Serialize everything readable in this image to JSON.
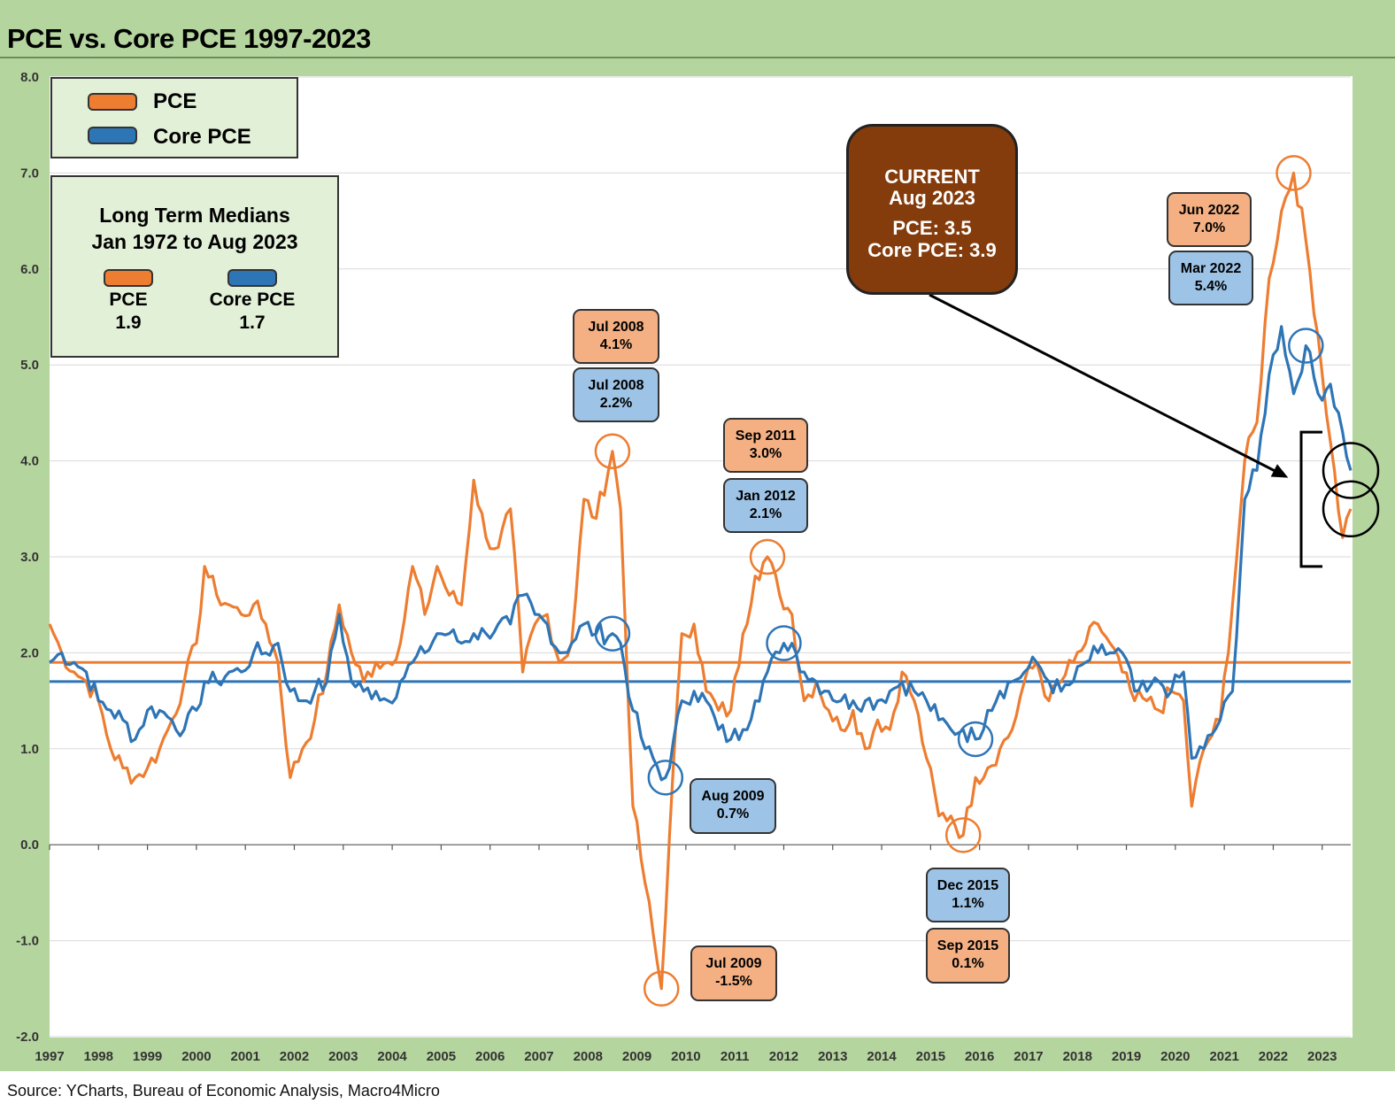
{
  "title": "PCE vs. Core PCE 1997-2023",
  "source": "Source:  YCharts,  Bureau of Economic Analysis, Macro4Micro",
  "colors": {
    "pce": "#ed7d31",
    "core": "#2e75b6",
    "frame": "#b5d59e",
    "current_box": "#843c0c",
    "callout_orange": "#f4b083",
    "callout_blue": "#9dc3e6"
  },
  "legend": {
    "pce_label": "PCE",
    "core_label": "Core PCE"
  },
  "medians": {
    "title_line1": "Long Term Medians",
    "title_line2": "Jan 1972 to Aug 2023",
    "pce_label": "PCE",
    "pce_value": "1.9",
    "core_label": "Core PCE",
    "core_value": "1.7"
  },
  "current": {
    "line1": "CURRENT",
    "line2": "Aug 2023",
    "line3": "PCE:  3.5",
    "line4": "Core PCE: 3.9"
  },
  "callouts": [
    {
      "key": "jun2022",
      "line1": "Jun 2022",
      "line2": "7.0%"
    },
    {
      "key": "mar2022",
      "line1": "Mar 2022",
      "line2": "5.4%"
    },
    {
      "key": "jul2008_pce",
      "line1": "Jul 2008",
      "line2": "4.1%"
    },
    {
      "key": "jul2008_core",
      "line1": "Jul 2008",
      "line2": "2.2%"
    },
    {
      "key": "sep2011",
      "line1": "Sep 2011",
      "line2": "3.0%"
    },
    {
      "key": "jan2012",
      "line1": "Jan 2012",
      "line2": "2.1%"
    },
    {
      "key": "aug2009",
      "line1": "Aug 2009",
      "line2": "0.7%"
    },
    {
      "key": "jul2009",
      "line1": "Jul 2009",
      "line2": "-1.5%"
    },
    {
      "key": "dec2015",
      "line1": "Dec 2015",
      "line2": "1.1%"
    },
    {
      "key": "sep2015",
      "line1": "Sep 2015",
      "line2": "0.1%"
    }
  ],
  "chart_data": {
    "type": "line",
    "title": "PCE vs. Core PCE 1997-2023",
    "ylim": [
      -2.0,
      8.0
    ],
    "y_ticks": [
      "8.0",
      "7.0",
      "6.0",
      "5.0",
      "4.0",
      "3.0",
      "2.0",
      "1.0",
      "0.0",
      "-1.0",
      "-2.0"
    ],
    "y_tick_values": [
      8,
      7,
      6,
      5,
      4,
      3,
      2,
      1,
      0,
      -1,
      -2
    ],
    "x_ticks": [
      "1997",
      "1998",
      "1999",
      "2000",
      "2001",
      "2002",
      "2003",
      "2004",
      "2005",
      "2006",
      "2007",
      "2008",
      "2009",
      "2010",
      "2011",
      "2012",
      "2013",
      "2014",
      "2015",
      "2016",
      "2017",
      "2018",
      "2019",
      "2020",
      "2021",
      "2022",
      "2023"
    ],
    "x_range": [
      "1997-01",
      "2023-08"
    ],
    "grid": true,
    "legend_position": "top-left",
    "medians": [
      {
        "name": "PCE",
        "value": 1.9
      },
      {
        "name": "Core PCE",
        "value": 1.7
      }
    ],
    "series": [
      {
        "name": "PCE",
        "points": [
          [
            "1997-01",
            2.3
          ],
          [
            "1997-04",
            2.0
          ],
          [
            "1997-07",
            1.8
          ],
          [
            "1997-10",
            1.7
          ],
          [
            "1998-01",
            1.5
          ],
          [
            "1998-04",
            1.0
          ],
          [
            "1998-07",
            0.8
          ],
          [
            "1998-10",
            0.7
          ],
          [
            "1999-01",
            0.8
          ],
          [
            "1999-04",
            1.0
          ],
          [
            "1999-07",
            1.3
          ],
          [
            "1999-10",
            1.7
          ],
          [
            "2000-01",
            2.1
          ],
          [
            "2000-03",
            2.9
          ],
          [
            "2000-06",
            2.6
          ],
          [
            "2000-09",
            2.5
          ],
          [
            "2000-12",
            2.4
          ],
          [
            "2001-03",
            2.5
          ],
          [
            "2001-06",
            2.3
          ],
          [
            "2001-09",
            1.9
          ],
          [
            "2001-12",
            0.7
          ],
          [
            "2002-03",
            1.0
          ],
          [
            "2002-06",
            1.3
          ],
          [
            "2002-09",
            1.8
          ],
          [
            "2002-12",
            2.5
          ],
          [
            "2003-03",
            2.0
          ],
          [
            "2003-06",
            1.7
          ],
          [
            "2003-09",
            1.9
          ],
          [
            "2003-12",
            1.9
          ],
          [
            "2004-03",
            2.1
          ],
          [
            "2004-06",
            2.9
          ],
          [
            "2004-09",
            2.4
          ],
          [
            "2004-12",
            2.9
          ],
          [
            "2005-03",
            2.6
          ],
          [
            "2005-06",
            2.5
          ],
          [
            "2005-09",
            3.8
          ],
          [
            "2005-12",
            3.2
          ],
          [
            "2006-03",
            3.1
          ],
          [
            "2006-06",
            3.5
          ],
          [
            "2006-09",
            1.8
          ],
          [
            "2006-12",
            2.3
          ],
          [
            "2007-03",
            2.4
          ],
          [
            "2007-06",
            1.9
          ],
          [
            "2007-09",
            2.1
          ],
          [
            "2007-12",
            3.6
          ],
          [
            "2008-03",
            3.4
          ],
          [
            "2008-07",
            4.1
          ],
          [
            "2008-09",
            3.5
          ],
          [
            "2008-12",
            0.4
          ],
          [
            "2009-03",
            -0.4
          ],
          [
            "2009-07",
            -1.5
          ],
          [
            "2009-09",
            0.1
          ],
          [
            "2009-12",
            2.2
          ],
          [
            "2010-03",
            2.3
          ],
          [
            "2010-06",
            1.6
          ],
          [
            "2010-09",
            1.4
          ],
          [
            "2010-12",
            1.4
          ],
          [
            "2011-03",
            2.2
          ],
          [
            "2011-06",
            2.8
          ],
          [
            "2011-09",
            3.0
          ],
          [
            "2011-12",
            2.6
          ],
          [
            "2012-03",
            2.4
          ],
          [
            "2012-06",
            1.5
          ],
          [
            "2012-09",
            1.7
          ],
          [
            "2012-12",
            1.4
          ],
          [
            "2013-03",
            1.2
          ],
          [
            "2013-06",
            1.4
          ],
          [
            "2013-09",
            1.0
          ],
          [
            "2013-12",
            1.3
          ],
          [
            "2014-03",
            1.2
          ],
          [
            "2014-06",
            1.8
          ],
          [
            "2014-09",
            1.5
          ],
          [
            "2014-12",
            0.9
          ],
          [
            "2015-03",
            0.3
          ],
          [
            "2015-06",
            0.3
          ],
          [
            "2015-09",
            0.1
          ],
          [
            "2015-12",
            0.7
          ],
          [
            "2016-03",
            0.8
          ],
          [
            "2016-06",
            1.0
          ],
          [
            "2016-09",
            1.2
          ],
          [
            "2016-12",
            1.7
          ],
          [
            "2017-03",
            1.9
          ],
          [
            "2017-06",
            1.5
          ],
          [
            "2017-09",
            1.7
          ],
          [
            "2017-12",
            1.9
          ],
          [
            "2018-03",
            2.1
          ],
          [
            "2018-06",
            2.3
          ],
          [
            "2018-09",
            2.1
          ],
          [
            "2018-12",
            1.8
          ],
          [
            "2019-03",
            1.5
          ],
          [
            "2019-06",
            1.5
          ],
          [
            "2019-09",
            1.4
          ],
          [
            "2019-12",
            1.6
          ],
          [
            "2020-03",
            1.5
          ],
          [
            "2020-05",
            0.4
          ],
          [
            "2020-08",
            1.0
          ],
          [
            "2020-12",
            1.3
          ],
          [
            "2021-03",
            2.5
          ],
          [
            "2021-06",
            4.0
          ],
          [
            "2021-09",
            4.4
          ],
          [
            "2021-12",
            5.9
          ],
          [
            "2022-03",
            6.6
          ],
          [
            "2022-06",
            7.0
          ],
          [
            "2022-09",
            6.3
          ],
          [
            "2022-12",
            5.3
          ],
          [
            "2023-03",
            4.2
          ],
          [
            "2023-06",
            3.2
          ],
          [
            "2023-08",
            3.5
          ]
        ]
      },
      {
        "name": "Core PCE",
        "points": [
          [
            "1997-01",
            1.9
          ],
          [
            "1997-04",
            2.0
          ],
          [
            "1997-07",
            1.9
          ],
          [
            "1997-10",
            1.8
          ],
          [
            "1998-01",
            1.5
          ],
          [
            "1998-04",
            1.4
          ],
          [
            "1998-07",
            1.3
          ],
          [
            "1998-10",
            1.1
          ],
          [
            "1999-01",
            1.4
          ],
          [
            "1999-04",
            1.4
          ],
          [
            "1999-07",
            1.3
          ],
          [
            "1999-10",
            1.2
          ],
          [
            "2000-01",
            1.4
          ],
          [
            "2000-03",
            1.7
          ],
          [
            "2000-06",
            1.7
          ],
          [
            "2000-09",
            1.8
          ],
          [
            "2000-12",
            1.8
          ],
          [
            "2001-03",
            2.0
          ],
          [
            "2001-06",
            2.0
          ],
          [
            "2001-09",
            2.1
          ],
          [
            "2001-12",
            1.6
          ],
          [
            "2002-03",
            1.5
          ],
          [
            "2002-06",
            1.6
          ],
          [
            "2002-09",
            1.7
          ],
          [
            "2002-12",
            2.4
          ],
          [
            "2003-03",
            1.7
          ],
          [
            "2003-06",
            1.6
          ],
          [
            "2003-09",
            1.6
          ],
          [
            "2003-12",
            1.5
          ],
          [
            "2004-03",
            1.7
          ],
          [
            "2004-06",
            1.9
          ],
          [
            "2004-09",
            2.0
          ],
          [
            "2004-12",
            2.2
          ],
          [
            "2005-03",
            2.2
          ],
          [
            "2005-06",
            2.1
          ],
          [
            "2005-09",
            2.2
          ],
          [
            "2005-12",
            2.2
          ],
          [
            "2006-03",
            2.3
          ],
          [
            "2006-06",
            2.3
          ],
          [
            "2006-09",
            2.6
          ],
          [
            "2006-12",
            2.4
          ],
          [
            "2007-03",
            2.3
          ],
          [
            "2007-06",
            2.0
          ],
          [
            "2007-09",
            2.1
          ],
          [
            "2007-12",
            2.3
          ],
          [
            "2008-03",
            2.2
          ],
          [
            "2008-07",
            2.2
          ],
          [
            "2008-09",
            2.1
          ],
          [
            "2008-12",
            1.4
          ],
          [
            "2009-03",
            1.0
          ],
          [
            "2009-08",
            0.7
          ],
          [
            "2009-09",
            0.8
          ],
          [
            "2009-12",
            1.5
          ],
          [
            "2010-03",
            1.6
          ],
          [
            "2010-06",
            1.5
          ],
          [
            "2010-09",
            1.2
          ],
          [
            "2010-12",
            1.1
          ],
          [
            "2011-03",
            1.2
          ],
          [
            "2011-06",
            1.5
          ],
          [
            "2011-09",
            1.8
          ],
          [
            "2011-12",
            2.0
          ],
          [
            "2012-01",
            2.1
          ],
          [
            "2012-03",
            2.1
          ],
          [
            "2012-06",
            1.8
          ],
          [
            "2012-09",
            1.7
          ],
          [
            "2012-12",
            1.6
          ],
          [
            "2013-03",
            1.5
          ],
          [
            "2013-06",
            1.5
          ],
          [
            "2013-09",
            1.5
          ],
          [
            "2013-12",
            1.5
          ],
          [
            "2014-03",
            1.6
          ],
          [
            "2014-06",
            1.7
          ],
          [
            "2014-09",
            1.6
          ],
          [
            "2014-12",
            1.5
          ],
          [
            "2015-03",
            1.3
          ],
          [
            "2015-06",
            1.2
          ],
          [
            "2015-09",
            1.2
          ],
          [
            "2015-12",
            1.1
          ],
          [
            "2016-03",
            1.4
          ],
          [
            "2016-06",
            1.6
          ],
          [
            "2016-09",
            1.7
          ],
          [
            "2016-12",
            1.8
          ],
          [
            "2017-03",
            1.9
          ],
          [
            "2017-06",
            1.7
          ],
          [
            "2017-09",
            1.6
          ],
          [
            "2017-12",
            1.7
          ],
          [
            "2018-03",
            1.9
          ],
          [
            "2018-06",
            2.0
          ],
          [
            "2018-09",
            2.0
          ],
          [
            "2018-12",
            2.0
          ],
          [
            "2019-03",
            1.6
          ],
          [
            "2019-06",
            1.6
          ],
          [
            "2019-09",
            1.7
          ],
          [
            "2019-12",
            1.6
          ],
          [
            "2020-03",
            1.8
          ],
          [
            "2020-05",
            0.9
          ],
          [
            "2020-08",
            1.0
          ],
          [
            "2020-12",
            1.3
          ],
          [
            "2021-03",
            1.6
          ],
          [
            "2021-06",
            3.6
          ],
          [
            "2021-09",
            3.9
          ],
          [
            "2021-12",
            4.9
          ],
          [
            "2022-03",
            5.4
          ],
          [
            "2022-06",
            4.7
          ],
          [
            "2022-09",
            5.2
          ],
          [
            "2022-12",
            4.7
          ],
          [
            "2023-03",
            4.8
          ],
          [
            "2023-06",
            4.3
          ],
          [
            "2023-08",
            3.9
          ]
        ]
      }
    ],
    "annotations": [
      {
        "series": "PCE",
        "date": "2008-07",
        "value": 4.1
      },
      {
        "series": "Core PCE",
        "date": "2008-07",
        "value": 2.2
      },
      {
        "series": "PCE",
        "date": "2009-07",
        "value": -1.5
      },
      {
        "series": "Core PCE",
        "date": "2009-08",
        "value": 0.7
      },
      {
        "series": "PCE",
        "date": "2011-09",
        "value": 3.0
      },
      {
        "series": "Core PCE",
        "date": "2012-01",
        "value": 2.1
      },
      {
        "series": "PCE",
        "date": "2015-09",
        "value": 0.1
      },
      {
        "series": "Core PCE",
        "date": "2015-12",
        "value": 1.1
      },
      {
        "series": "PCE",
        "date": "2022-06",
        "value": 7.0
      },
      {
        "series": "Core PCE",
        "date": "2022-09",
        "value": 5.2
      },
      {
        "series": "PCE",
        "date": "2023-08",
        "value": 3.5
      },
      {
        "series": "Core PCE",
        "date": "2023-08",
        "value": 3.9
      }
    ]
  }
}
